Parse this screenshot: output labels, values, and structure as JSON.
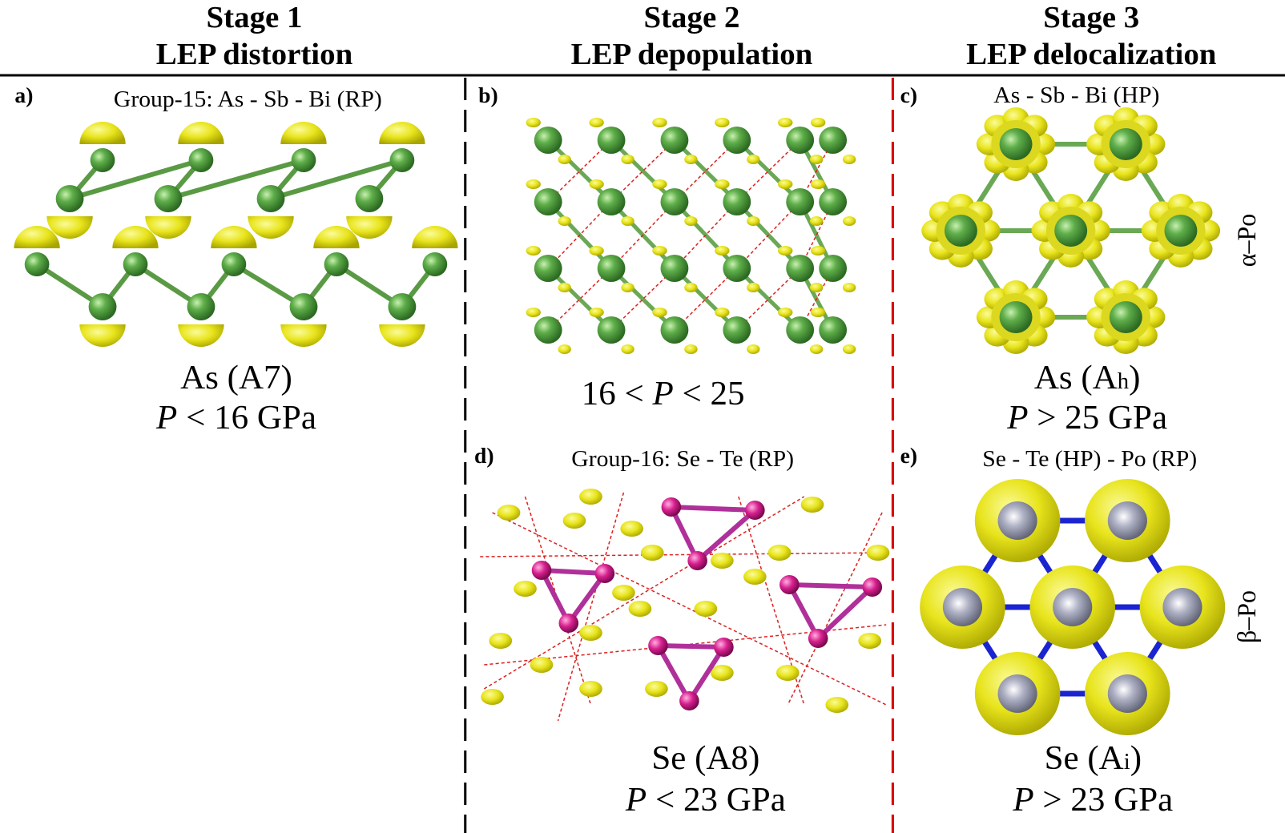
{
  "stages": [
    {
      "title": "Stage 1",
      "subtitle": "LEP distortion"
    },
    {
      "title": "Stage 2",
      "subtitle": "LEP depopulation"
    },
    {
      "title": "Stage 3",
      "subtitle": "LEP delocalization"
    }
  ],
  "panels": [
    {
      "label": "a)",
      "heading": "Group-15: As - Sb - Bi (RP)",
      "caption": [
        [
          "As (A7)"
        ],
        [
          "P",
          " < 16 GPa"
        ]
      ]
    },
    {
      "label": "b)",
      "caption": [
        [
          "16 < ",
          "P",
          " < 25"
        ]
      ]
    },
    {
      "label": "c)",
      "heading": "As - Sb - Bi (HP)",
      "caption": [
        [
          "As (A",
          "h",
          ")"
        ],
        [
          "P",
          " > 25 GPa"
        ]
      ],
      "side_label": "α–Po"
    },
    {
      "label": "d)",
      "heading": "Group-16: Se - Te (RP)",
      "caption": [
        [
          "Se (A8)"
        ],
        [
          "P",
          " < 23 GPa"
        ]
      ]
    },
    {
      "label": "e)",
      "heading": "Se - Te (HP) - Po (RP)",
      "caption": [
        [
          "Se (A",
          "i",
          ")"
        ],
        [
          "P",
          " > 23 GPa"
        ]
      ],
      "side_label": "β–Po"
    }
  ]
}
